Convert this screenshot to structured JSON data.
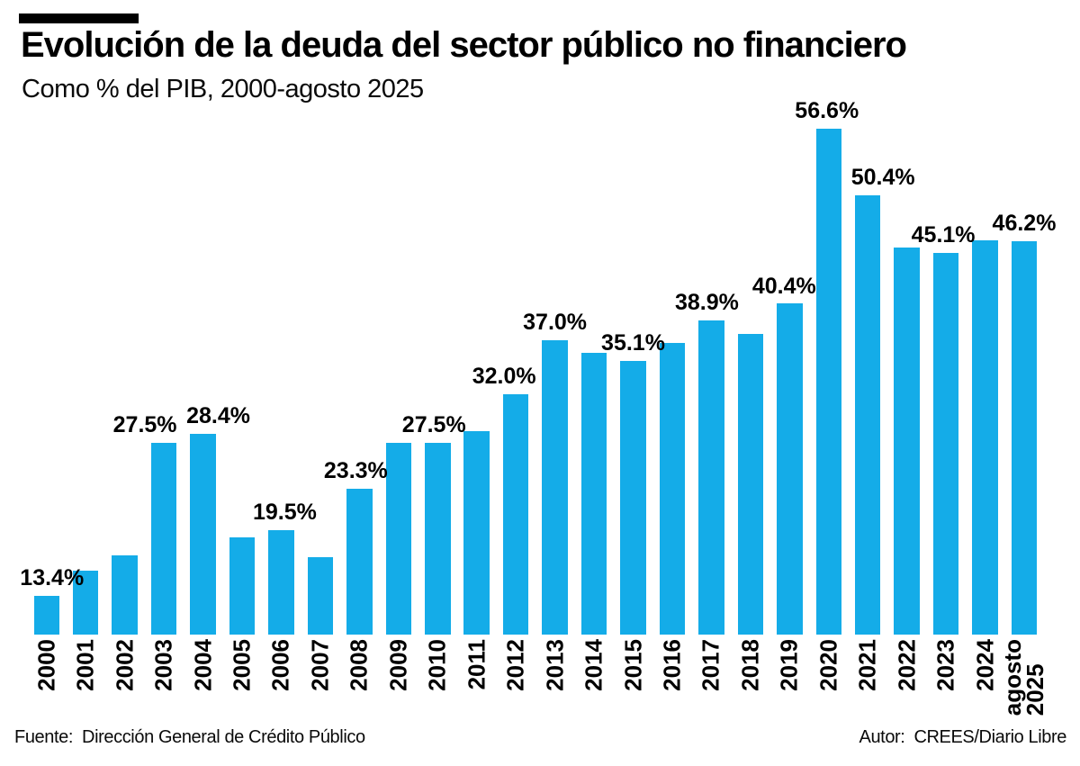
{
  "header": {
    "title": "Evolución de la deuda del sector público no financiero",
    "subtitle": "Como % del PIB, 2000-agosto 2025"
  },
  "footer": {
    "source_label": "Fuente:",
    "source": "Dirección General de Crédito Público",
    "author_label": "Autor:",
    "author": "CREES/Diario Libre"
  },
  "chart_data": {
    "type": "bar",
    "title": "Evolución de la deuda del sector público no financiero",
    "subtitle": "Como % del PIB, 2000-agosto 2025",
    "unit": "% del PIB",
    "bar_color": "#14ACE8",
    "label_color": "#000000",
    "grid": false,
    "legend": false,
    "y_axis_shown": false,
    "baseline_value": 9.8,
    "ylim": [
      9.8,
      68.5
    ],
    "categories": [
      "2000",
      "2001",
      "2002",
      "2003",
      "2004",
      "2005",
      "2006",
      "2007",
      "2008",
      "2009",
      "2010",
      "2011",
      "2012",
      "2013",
      "2014",
      "2015",
      "2016",
      "2017",
      "2018",
      "2019",
      "2020",
      "2021",
      "2022",
      "2023",
      "2024",
      "agosto 2025"
    ],
    "values": [
      13.4,
      15.7,
      17.1,
      27.5,
      28.4,
      18.8,
      19.5,
      17.0,
      23.3,
      27.5,
      27.5,
      28.6,
      32.0,
      37.0,
      35.9,
      35.1,
      36.8,
      38.9,
      37.6,
      40.4,
      56.6,
      50.4,
      45.6,
      45.1,
      46.3,
      46.2
    ],
    "labels": [
      {
        "index": 0,
        "text": "13.4%",
        "dx": 6
      },
      {
        "index": 3,
        "text": "27.5%",
        "dx": -21
      },
      {
        "index": 4,
        "text": "28.4%",
        "dx": 17
      },
      {
        "index": 6,
        "text": "19.5%",
        "dx": 4
      },
      {
        "index": 8,
        "text": "23.3%",
        "dx": -4
      },
      {
        "index": 10,
        "text": "27.5%",
        "dx": -4
      },
      {
        "index": 12,
        "text": "32.0%",
        "dx": -13
      },
      {
        "index": 13,
        "text": "37.0%",
        "dx": 0
      },
      {
        "index": 15,
        "text": "35.1%",
        "dx": 0
      },
      {
        "index": 17,
        "text": "38.9%",
        "dx": -5
      },
      {
        "index": 19,
        "text": "40.4%",
        "dx": -6
      },
      {
        "index": 20,
        "text": "56.6%",
        "dx": -2
      },
      {
        "index": 21,
        "text": "50.4%",
        "dx": 17
      },
      {
        "index": 23,
        "text": "45.1%",
        "dx": -3
      },
      {
        "index": 25,
        "text": "46.2%",
        "dx": 0
      }
    ]
  }
}
